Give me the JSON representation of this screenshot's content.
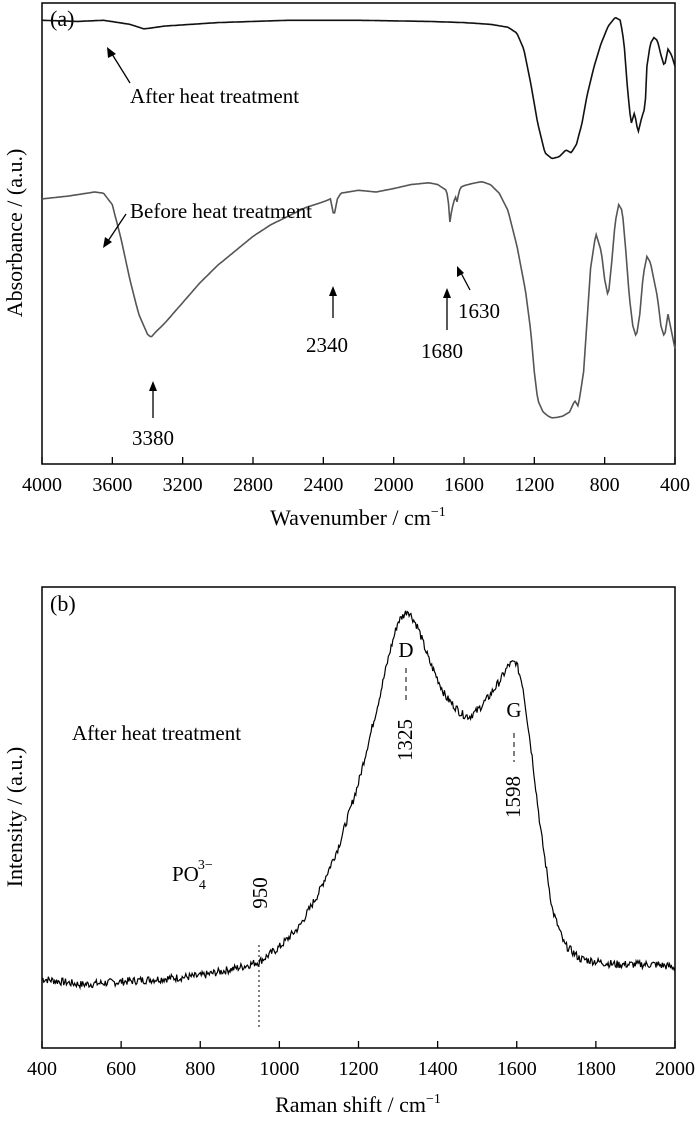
{
  "chart_data": [
    {
      "type": "line",
      "panel_label": "(a)",
      "xlabel_main": "Wavenumber / cm",
      "xlabel_sup": "−1",
      "ylabel": "Absorbance / (a.u.)",
      "xlim": [
        4000,
        400
      ],
      "xticks": [
        "4000",
        "3600",
        "3200",
        "2800",
        "2400",
        "2000",
        "1600",
        "1200",
        "800",
        "400"
      ],
      "series": [
        {
          "name": "After heat treatment",
          "color": "#111111",
          "x": [
            4000,
            3800,
            3650,
            3500,
            3420,
            3300,
            3000,
            2600,
            2200,
            1800,
            1600,
            1450,
            1350,
            1300,
            1260,
            1220,
            1180,
            1140,
            1100,
            1060,
            1020,
            990,
            960,
            930,
            900,
            860,
            820,
            780,
            740,
            710,
            690,
            670,
            650,
            630,
            610,
            590,
            570,
            560,
            540,
            520,
            500,
            480,
            460,
            440,
            420,
            400
          ],
          "y": [
            97.0,
            96.8,
            97.0,
            96.3,
            95.5,
            96.0,
            96.6,
            97.0,
            97.0,
            96.8,
            96.6,
            96.3,
            95.8,
            94.8,
            92.0,
            86.0,
            79.0,
            74.0,
            73.0,
            73.3,
            74.5,
            74.0,
            75.5,
            79.0,
            84.0,
            89.0,
            93.0,
            96.0,
            97.5,
            97.0,
            93.0,
            85.0,
            79.0,
            81.0,
            77.5,
            80.0,
            82.0,
            89.0,
            93.0,
            94.0,
            93.5,
            91.0,
            89.0,
            92.0,
            91.0,
            89.0
          ]
        },
        {
          "name": "Before heat treatment",
          "color": "#555555",
          "x": [
            4000,
            3850,
            3700,
            3650,
            3600,
            3550,
            3500,
            3450,
            3400,
            3380,
            3350,
            3300,
            3200,
            3100,
            3000,
            2900,
            2800,
            2700,
            2600,
            2500,
            2400,
            2360,
            2340,
            2320,
            2300,
            2200,
            2100,
            2000,
            1900,
            1800,
            1750,
            1700,
            1690,
            1680,
            1670,
            1650,
            1640,
            1630,
            1620,
            1600,
            1550,
            1500,
            1450,
            1400,
            1350,
            1300,
            1250,
            1220,
            1200,
            1180,
            1150,
            1120,
            1100,
            1070,
            1040,
            1000,
            970,
            950,
            920,
            880,
            850,
            820,
            800,
            780,
            760,
            740,
            720,
            700,
            680,
            660,
            640,
            620,
            600,
            580,
            560,
            540,
            520,
            500,
            480,
            460,
            440,
            420,
            400
          ],
          "y": [
            66.0,
            66.5,
            67.2,
            67.0,
            65.0,
            59.0,
            52.0,
            46.0,
            42.5,
            42.0,
            43.0,
            44.5,
            48.0,
            51.5,
            54.5,
            57.0,
            59.5,
            61.5,
            63.0,
            64.5,
            65.5,
            66.0,
            63.0,
            66.0,
            67.0,
            67.5,
            67.2,
            67.8,
            68.5,
            68.8,
            68.5,
            67.5,
            66.0,
            62.0,
            64.0,
            66.5,
            65.5,
            67.0,
            68.0,
            68.3,
            68.7,
            69.0,
            68.5,
            67.0,
            64.0,
            58.0,
            50.0,
            43.0,
            36.0,
            31.0,
            29.0,
            28.3,
            28.0,
            28.1,
            28.3,
            29.0,
            31.0,
            30.0,
            36.0,
            54.0,
            60.0,
            57.0,
            52.0,
            49.0,
            55.0,
            62.0,
            65.0,
            64.0,
            57.0,
            49.0,
            44.0,
            42.0,
            46.0,
            53.0,
            56.0,
            55.0,
            52.0,
            49.0,
            44.0,
            42.0,
            46.0,
            43.0,
            40.0
          ]
        }
      ],
      "annotations": [
        "After heat treatment",
        "Before heat treatment",
        "3380",
        "2340",
        "1680",
        "1630"
      ]
    },
    {
      "type": "line",
      "panel_label": "(b)",
      "xlabel_main": "Raman shift / cm",
      "xlabel_sup": "−1",
      "ylabel": "Intensity / (a.u.)",
      "xlim": [
        400,
        2000
      ],
      "xticks": [
        "400",
        "600",
        "800",
        "1000",
        "1200",
        "1400",
        "1600",
        "1800",
        "2000"
      ],
      "series": [
        {
          "name": "After heat treatment",
          "color": "#000000",
          "x": [
            400,
            500,
            600,
            700,
            800,
            900,
            950,
            1000,
            1050,
            1100,
            1150,
            1200,
            1250,
            1280,
            1300,
            1325,
            1350,
            1380,
            1420,
            1460,
            1480,
            1500,
            1530,
            1560,
            1580,
            1598,
            1615,
            1640,
            1660,
            1690,
            1720,
            1760,
            1800,
            1850,
            1900,
            1950,
            2000
          ],
          "y": [
            12.0,
            11.0,
            11.5,
            12.0,
            12.5,
            14.0,
            15.0,
            17.5,
            21.0,
            27.0,
            35.0,
            46.0,
            60.0,
            69.0,
            74.0,
            76.0,
            73.0,
            67.0,
            61.0,
            58.0,
            57.5,
            58.5,
            61.0,
            64.0,
            66.5,
            67.0,
            63.0,
            50.0,
            38.0,
            24.0,
            18.0,
            15.5,
            15.0,
            14.5,
            14.5,
            14.5,
            14.0
          ]
        }
      ],
      "annotations": [
        "After heat treatment",
        "D",
        "G",
        "1325",
        "1598",
        "950",
        "PO",
        "4",
        "3−"
      ]
    }
  ]
}
